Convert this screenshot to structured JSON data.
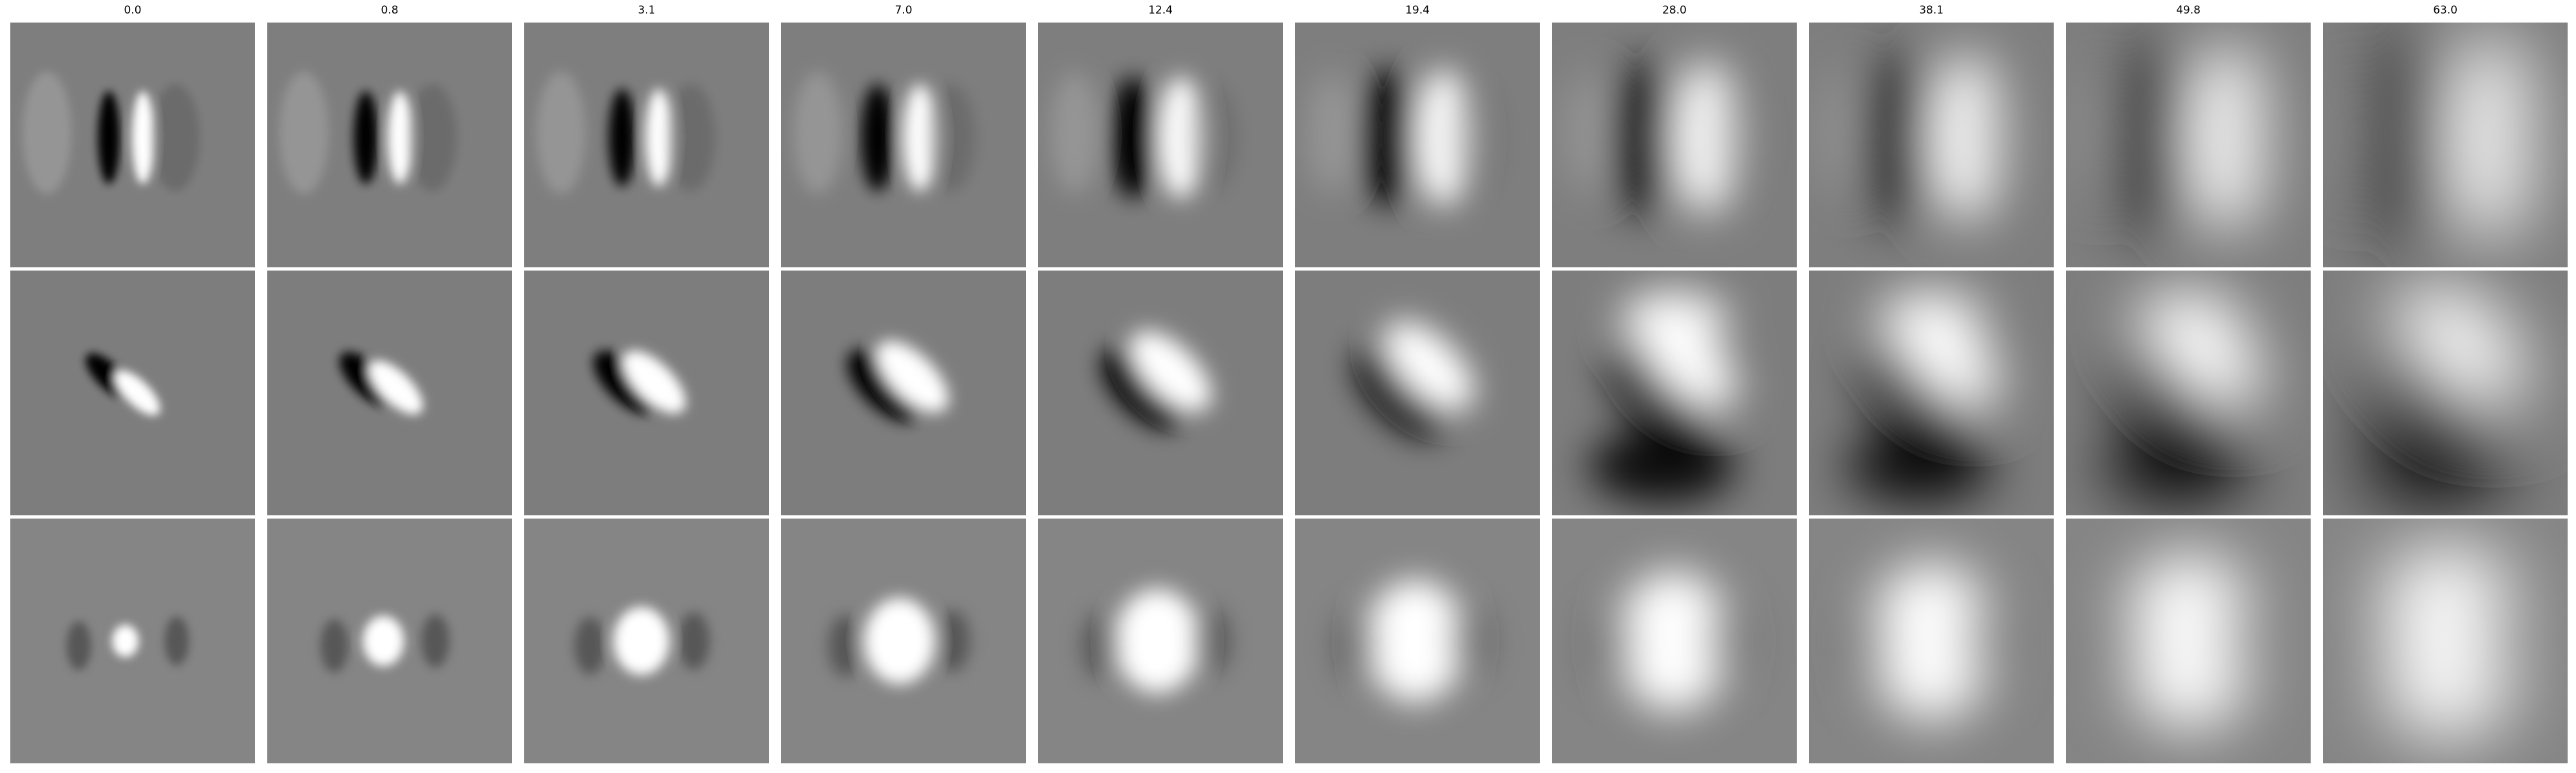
{
  "columns": [
    "0.0",
    "0.8",
    "3.1",
    "7.0",
    "12.4",
    "19.4",
    "28.0",
    "38.1",
    "49.8",
    "63.0"
  ],
  "rows": [
    "top",
    "middle",
    "bottom"
  ],
  "colors": {
    "background": "#ffffff",
    "mid_gray": "#808080",
    "dark": "#000000",
    "light": "#ffffff"
  }
}
